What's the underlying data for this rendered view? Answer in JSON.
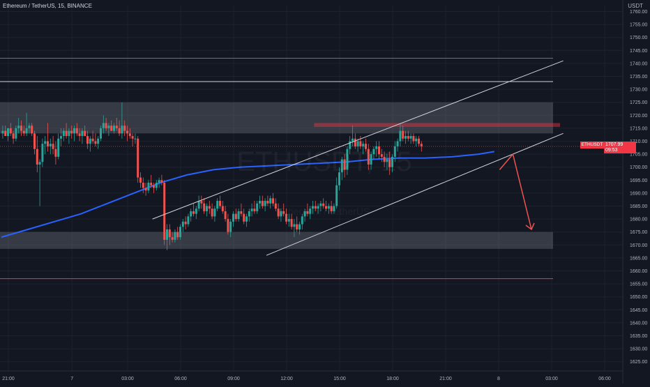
{
  "header": {
    "title": "Ethereum / TetherUS, 15, BINANCE",
    "currency": "USDT"
  },
  "watermark": {
    "symbol": "ETHUSDT, 15",
    "name": "Ethereum / TetherUS"
  },
  "last_price": {
    "symbol": "ETHUSDT",
    "price": "1707.99",
    "countdown": "09:53"
  },
  "colors": {
    "background": "#131722",
    "up": "#26a69a",
    "down": "#ef5350",
    "ma": "#2962ff",
    "zone": "#787b86",
    "resistance": "#f23645",
    "channel": "#d1d4dc"
  },
  "chart_data": {
    "type": "candlestick",
    "symbol": "ETHUSDT",
    "exchange": "BINANCE",
    "interval": "15",
    "y_axis": {
      "min": 1625,
      "max": 1760,
      "step": 5,
      "labels": [
        "1760.00",
        "1755.00",
        "1750.00",
        "1745.00",
        "1740.00",
        "1735.00",
        "1730.00",
        "1725.00",
        "1720.00",
        "1715.00",
        "1710.00",
        "1705.00",
        "1700.00",
        "1695.00",
        "1690.00",
        "1685.00",
        "1680.00",
        "1675.00",
        "1670.00",
        "1665.00",
        "1660.00",
        "1655.00",
        "1650.00",
        "1645.00",
        "1640.00",
        "1635.00",
        "1630.00",
        "1625.00"
      ]
    },
    "x_axis": {
      "labels": [
        "21:00",
        "7",
        "03:00",
        "06:00",
        "09:00",
        "12:00",
        "15:00",
        "18:00",
        "21:00",
        "8",
        "03:00",
        "06:00"
      ],
      "label_bars": [
        0,
        24,
        45,
        65,
        85,
        105,
        125,
        145,
        165,
        185,
        205,
        225
      ]
    },
    "candles": [
      [
        1713,
        1716,
        1711,
        1714
      ],
      [
        1714,
        1716,
        1712,
        1712
      ],
      [
        1712,
        1715,
        1710,
        1715
      ],
      [
        1715,
        1717,
        1712,
        1713
      ],
      [
        1713,
        1714,
        1709,
        1711
      ],
      [
        1711,
        1716,
        1710,
        1715
      ],
      [
        1715,
        1719,
        1713,
        1716
      ],
      [
        1716,
        1718,
        1712,
        1714
      ],
      [
        1714,
        1716,
        1712,
        1713
      ],
      [
        1713,
        1721,
        1712,
        1715
      ],
      [
        1715,
        1717,
        1713,
        1716
      ],
      [
        1716,
        1717,
        1712,
        1713
      ],
      [
        1713,
        1714,
        1705,
        1707
      ],
      [
        1707,
        1712,
        1698,
        1701
      ],
      [
        1701,
        1703,
        1685,
        1702
      ],
      [
        1702,
        1711,
        1700,
        1709
      ],
      [
        1709,
        1712,
        1705,
        1710
      ],
      [
        1710,
        1717,
        1706,
        1708
      ],
      [
        1708,
        1711,
        1705,
        1709
      ],
      [
        1709,
        1712,
        1705,
        1707
      ],
      [
        1707,
        1710,
        1701,
        1704
      ],
      [
        1704,
        1713,
        1703,
        1711
      ],
      [
        1711,
        1715,
        1708,
        1712
      ],
      [
        1712,
        1715,
        1710,
        1714
      ],
      [
        1714,
        1717,
        1711,
        1712
      ],
      [
        1712,
        1715,
        1709,
        1714
      ],
      [
        1714,
        1716,
        1711,
        1713
      ],
      [
        1713,
        1716,
        1710,
        1715
      ],
      [
        1715,
        1717,
        1712,
        1713
      ],
      [
        1713,
        1715,
        1710,
        1712
      ],
      [
        1712,
        1715,
        1709,
        1714
      ],
      [
        1714,
        1716,
        1712,
        1712
      ],
      [
        1712,
        1714,
        1707,
        1709
      ],
      [
        1709,
        1712,
        1706,
        1711
      ],
      [
        1711,
        1714,
        1709,
        1710
      ],
      [
        1710,
        1713,
        1708,
        1709
      ],
      [
        1709,
        1712,
        1707,
        1711
      ],
      [
        1711,
        1716,
        1710,
        1715
      ],
      [
        1715,
        1720,
        1713,
        1717
      ],
      [
        1717,
        1719,
        1714,
        1715
      ],
      [
        1715,
        1717,
        1712,
        1716
      ],
      [
        1716,
        1718,
        1714,
        1714
      ],
      [
        1714,
        1717,
        1713,
        1716
      ],
      [
        1716,
        1719,
        1714,
        1715
      ],
      [
        1715,
        1718,
        1712,
        1713
      ],
      [
        1713,
        1725,
        1711,
        1716
      ],
      [
        1716,
        1718,
        1712,
        1714
      ],
      [
        1714,
        1716,
        1710,
        1713
      ],
      [
        1713,
        1715,
        1711,
        1712
      ],
      [
        1712,
        1713,
        1708,
        1711
      ],
      [
        1711,
        1713,
        1709,
        1711
      ],
      [
        1711,
        1712,
        1694,
        1696
      ],
      [
        1696,
        1698,
        1692,
        1694
      ],
      [
        1694,
        1696,
        1690,
        1692
      ],
      [
        1692,
        1694,
        1689,
        1691
      ],
      [
        1691,
        1695,
        1690,
        1694
      ],
      [
        1694,
        1697,
        1692,
        1693
      ],
      [
        1693,
        1694,
        1690,
        1692
      ],
      [
        1692,
        1695,
        1691,
        1694
      ],
      [
        1694,
        1696,
        1692,
        1695
      ],
      [
        1695,
        1697,
        1693,
        1694
      ],
      [
        1694,
        1695,
        1670,
        1672
      ],
      [
        1672,
        1678,
        1668,
        1676
      ],
      [
        1676,
        1678,
        1670,
        1673
      ],
      [
        1673,
        1675,
        1671,
        1672
      ],
      [
        1672,
        1676,
        1671,
        1675
      ],
      [
        1675,
        1677,
        1672,
        1673
      ],
      [
        1673,
        1678,
        1672,
        1677
      ],
      [
        1677,
        1680,
        1675,
        1679
      ],
      [
        1679,
        1681,
        1676,
        1678
      ],
      [
        1678,
        1682,
        1677,
        1681
      ],
      [
        1681,
        1684,
        1679,
        1683
      ],
      [
        1683,
        1686,
        1681,
        1682
      ],
      [
        1682,
        1685,
        1680,
        1684
      ],
      [
        1684,
        1689,
        1683,
        1687
      ],
      [
        1687,
        1689,
        1684,
        1686
      ],
      [
        1686,
        1688,
        1682,
        1683
      ],
      [
        1683,
        1686,
        1681,
        1685
      ],
      [
        1685,
        1687,
        1682,
        1684
      ],
      [
        1684,
        1686,
        1680,
        1681
      ],
      [
        1681,
        1685,
        1679,
        1684
      ],
      [
        1684,
        1688,
        1683,
        1687
      ],
      [
        1687,
        1689,
        1684,
        1685
      ],
      [
        1685,
        1687,
        1682,
        1683
      ],
      [
        1683,
        1685,
        1679,
        1680
      ],
      [
        1680,
        1682,
        1674,
        1675
      ],
      [
        1675,
        1680,
        1673,
        1679
      ],
      [
        1679,
        1683,
        1677,
        1682
      ],
      [
        1682,
        1684,
        1679,
        1680
      ],
      [
        1680,
        1684,
        1679,
        1683
      ],
      [
        1683,
        1686,
        1681,
        1682
      ],
      [
        1682,
        1684,
        1678,
        1679
      ],
      [
        1679,
        1682,
        1677,
        1681
      ],
      [
        1681,
        1684,
        1679,
        1683
      ],
      [
        1683,
        1686,
        1681,
        1684
      ],
      [
        1684,
        1687,
        1682,
        1683
      ],
      [
        1683,
        1687,
        1682,
        1686
      ],
      [
        1686,
        1689,
        1684,
        1687
      ],
      [
        1687,
        1689,
        1684,
        1685
      ],
      [
        1685,
        1688,
        1683,
        1687
      ],
      [
        1687,
        1689,
        1685,
        1686
      ],
      [
        1686,
        1689,
        1684,
        1688
      ],
      [
        1688,
        1690,
        1685,
        1686
      ],
      [
        1686,
        1688,
        1683,
        1684
      ],
      [
        1684,
        1686,
        1680,
        1681
      ],
      [
        1681,
        1684,
        1679,
        1683
      ],
      [
        1683,
        1686,
        1681,
        1682
      ],
      [
        1682,
        1684,
        1678,
        1679
      ],
      [
        1679,
        1682,
        1677,
        1680
      ],
      [
        1680,
        1682,
        1676,
        1677
      ],
      [
        1677,
        1680,
        1673,
        1678
      ],
      [
        1678,
        1681,
        1675,
        1676
      ],
      [
        1676,
        1679,
        1674,
        1678
      ],
      [
        1678,
        1682,
        1676,
        1681
      ],
      [
        1681,
        1684,
        1679,
        1683
      ],
      [
        1683,
        1686,
        1681,
        1682
      ],
      [
        1682,
        1685,
        1680,
        1684
      ],
      [
        1684,
        1687,
        1682,
        1685
      ],
      [
        1685,
        1687,
        1683,
        1684
      ],
      [
        1684,
        1686,
        1682,
        1685
      ],
      [
        1685,
        1687,
        1683,
        1686
      ],
      [
        1686,
        1688,
        1684,
        1685
      ],
      [
        1685,
        1687,
        1683,
        1684
      ],
      [
        1684,
        1686,
        1682,
        1685
      ],
      [
        1685,
        1687,
        1682,
        1683
      ],
      [
        1683,
        1686,
        1682,
        1685
      ],
      [
        1685,
        1696,
        1684,
        1693
      ],
      [
        1693,
        1700,
        1691,
        1698
      ],
      [
        1698,
        1704,
        1695,
        1703
      ],
      [
        1703,
        1705,
        1696,
        1699
      ],
      [
        1699,
        1708,
        1697,
        1707
      ],
      [
        1707,
        1712,
        1705,
        1710
      ],
      [
        1710,
        1716,
        1708,
        1711
      ],
      [
        1711,
        1713,
        1707,
        1708
      ],
      [
        1708,
        1711,
        1706,
        1710
      ],
      [
        1710,
        1712,
        1707,
        1708
      ],
      [
        1708,
        1710,
        1705,
        1709
      ],
      [
        1709,
        1711,
        1706,
        1707
      ],
      [
        1707,
        1709,
        1699,
        1701
      ],
      [
        1701,
        1706,
        1699,
        1705
      ],
      [
        1705,
        1708,
        1703,
        1707
      ],
      [
        1707,
        1710,
        1704,
        1708
      ],
      [
        1708,
        1710,
        1703,
        1705
      ],
      [
        1705,
        1707,
        1702,
        1704
      ],
      [
        1704,
        1706,
        1700,
        1702
      ],
      [
        1702,
        1705,
        1699,
        1703
      ],
      [
        1703,
        1706,
        1697,
        1700
      ],
      [
        1700,
        1705,
        1698,
        1704
      ],
      [
        1704,
        1710,
        1702,
        1708
      ],
      [
        1708,
        1711,
        1706,
        1710
      ],
      [
        1710,
        1717,
        1708,
        1714
      ],
      [
        1714,
        1716,
        1710,
        1711
      ],
      [
        1711,
        1714,
        1709,
        1712
      ],
      [
        1712,
        1714,
        1710,
        1711
      ],
      [
        1711,
        1713,
        1709,
        1712
      ],
      [
        1712,
        1713,
        1709,
        1710
      ],
      [
        1710,
        1712,
        1708,
        1711
      ],
      [
        1711,
        1712,
        1708,
        1709
      ],
      [
        1709,
        1710,
        1706,
        1708
      ]
    ],
    "moving_average": [
      [
        0,
        1673
      ],
      [
        10,
        1676
      ],
      [
        20,
        1679
      ],
      [
        30,
        1682
      ],
      [
        40,
        1686
      ],
      [
        50,
        1690
      ],
      [
        60,
        1694
      ],
      [
        70,
        1697
      ],
      [
        80,
        1699
      ],
      [
        90,
        1700
      ],
      [
        100,
        1700.5
      ],
      [
        110,
        1701
      ],
      [
        120,
        1701.5
      ],
      [
        130,
        1702
      ],
      [
        140,
        1703
      ],
      [
        150,
        1703.5
      ],
      [
        160,
        1703.5
      ],
      [
        170,
        1704
      ],
      [
        180,
        1705
      ],
      [
        186,
        1706
      ]
    ],
    "horizontal_lines": [
      {
        "price": 1742,
        "color": "#f23645"
      },
      {
        "price": 1733,
        "color": "#d1d4dc"
      },
      {
        "price": 1657,
        "color": "#f23645"
      }
    ],
    "zones": [
      {
        "top": 1725,
        "bottom": 1713,
        "color": "#787b86"
      },
      {
        "top": 1675,
        "bottom": 1668.5,
        "color": "#787b86"
      },
      {
        "top": 1717,
        "bottom": 1715.5,
        "color": "#f23645",
        "start_bar": 118
      }
    ],
    "channel_lines": [
      [
        [
          57,
          1680
        ],
        [
          212,
          1741
        ]
      ],
      [
        [
          100,
          1666
        ],
        [
          212,
          1713
        ]
      ]
    ],
    "projection_arrow": [
      [
        188,
        1699
      ],
      [
        193,
        1705
      ],
      [
        200,
        1676
      ]
    ]
  }
}
